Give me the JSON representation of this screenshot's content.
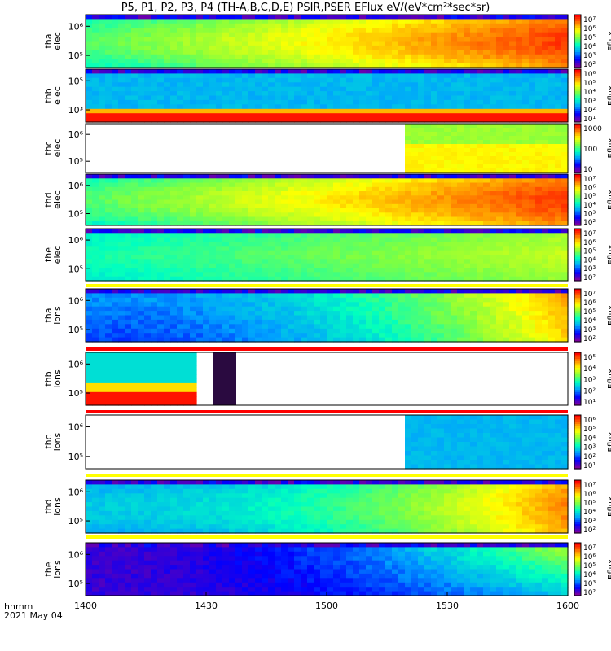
{
  "title": "P5, P1, P2, P3, P4 (TH-A,B,C,D,E) PSIR,PSER EFlux eV/(eV*cm²*sec*sr)",
  "footer": {
    "unit": "hhmm",
    "date": "2021 May 04"
  },
  "colors": {
    "spectrogram_scale": [
      "#7b00a0",
      "#0000ff",
      "#00a0ff",
      "#00ffc0",
      "#80ff40",
      "#ffff00",
      "#ff8000",
      "#ff0000"
    ],
    "flag_red": "#ff0000",
    "flag_yellow": "#ffff00"
  },
  "chart_data": {
    "type": "heatmap",
    "x_axis": {
      "range": [
        "1400",
        "1600"
      ],
      "ticks": [
        "1400",
        "1430",
        "1500",
        "1530",
        "1600"
      ]
    },
    "panels": [
      {
        "label": [
          "tha",
          "elec"
        ],
        "yticks": [
          "10⁶",
          "10⁵"
        ],
        "colorbar_label": "Eflux",
        "colorbar_ticks": [
          "10⁷",
          "10⁶",
          "10⁵",
          "10⁴",
          "10³",
          "10²"
        ],
        "pattern": "rising-to-right-orange",
        "flag": "none"
      },
      {
        "label": [
          "thb",
          "elec"
        ],
        "yticks": [
          "10⁵",
          "10³"
        ],
        "colorbar_label": "Eflux",
        "colorbar_ticks": [
          "10⁶",
          "10⁵",
          "10⁴",
          "10³",
          "10²",
          "10¹"
        ],
        "pattern": "cyan-with-red-bottom",
        "flag": "none"
      },
      {
        "label": [
          "thc",
          "elec"
        ],
        "yticks": [
          "10⁶",
          "10⁵"
        ],
        "colorbar_label": "Eflux",
        "colorbar_ticks": [
          "1000",
          "100",
          "10"
        ],
        "pattern": "blank-then-green-yellow",
        "flag": "none"
      },
      {
        "label": [
          "thd",
          "elec"
        ],
        "yticks": [
          "10⁶",
          "10⁵"
        ],
        "colorbar_label": "Eflux",
        "colorbar_ticks": [
          "10⁷",
          "10⁶",
          "10⁵",
          "10⁴",
          "10³",
          "10²"
        ],
        "pattern": "rising-to-right-orange",
        "flag": "none"
      },
      {
        "label": [
          "the",
          "elec"
        ],
        "yticks": [
          "10⁶",
          "10⁵"
        ],
        "colorbar_label": "Eflux",
        "colorbar_ticks": [
          "10⁷",
          "10⁶",
          "10⁵",
          "10⁴",
          "10³",
          "10²"
        ],
        "pattern": "green-to-yellow",
        "flag": "yellow"
      },
      {
        "label": [
          "tha",
          "ions"
        ],
        "yticks": [
          "10⁶",
          "10⁵"
        ],
        "colorbar_label": "Eflux",
        "colorbar_ticks": [
          "10⁷",
          "10⁶",
          "10⁵",
          "10⁴",
          "10³",
          "10²"
        ],
        "pattern": "blue-to-orange",
        "flag": "red"
      },
      {
        "label": [
          "thb",
          "ions"
        ],
        "yticks": [
          "10⁶",
          "10⁵"
        ],
        "colorbar_label": "Eflux",
        "colorbar_ticks": [
          "10⁵",
          "10⁴",
          "10³",
          "10²",
          "10¹"
        ],
        "pattern": "short-segment",
        "flag": "red"
      },
      {
        "label": [
          "thc",
          "ions"
        ],
        "yticks": [
          "10⁶",
          "10⁵"
        ],
        "colorbar_label": "Eflux",
        "colorbar_ticks": [
          "10⁶",
          "10⁵",
          "10⁴",
          "10³",
          "10²",
          "10¹"
        ],
        "pattern": "blank-then-cyan",
        "flag": "yellow"
      },
      {
        "label": [
          "thd",
          "ions"
        ],
        "yticks": [
          "10⁶",
          "10⁵"
        ],
        "colorbar_label": "Eflux",
        "colorbar_ticks": [
          "10⁷",
          "10⁶",
          "10⁵",
          "10⁴",
          "10³",
          "10²"
        ],
        "pattern": "cyan-to-orange",
        "flag": "yellow"
      },
      {
        "label": [
          "the",
          "ions"
        ],
        "yticks": [
          "10⁶",
          "10⁵"
        ],
        "colorbar_label": "Eflux",
        "colorbar_ticks": [
          "10⁷",
          "10⁶",
          "10⁵",
          "10⁴",
          "10³",
          "10²"
        ],
        "pattern": "purple-blue-to-yellow",
        "flag": "none"
      }
    ]
  }
}
